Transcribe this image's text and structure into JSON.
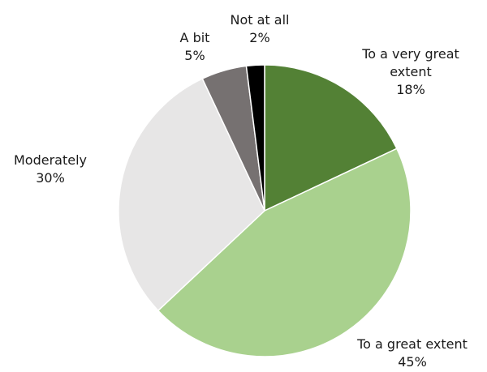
{
  "chart_data": {
    "type": "pie",
    "start_angle_deg": 0,
    "direction": "clockwise",
    "slices": [
      {
        "label": [
          "To a very great",
          "extent"
        ],
        "percent_label": "18%",
        "value": 18,
        "color": "#538135"
      },
      {
        "label": [
          "To a great extent"
        ],
        "percent_label": "45%",
        "value": 45,
        "color": "#a9d18e"
      },
      {
        "label": [
          "Moderately"
        ],
        "percent_label": "30%",
        "value": 30,
        "color": "#e7e6e6"
      },
      {
        "label": [
          "A bit"
        ],
        "percent_label": "5%",
        "value": 5,
        "color": "#767171"
      },
      {
        "label": [
          "Not at all"
        ],
        "percent_label": "2%",
        "value": 2,
        "color": "#000000"
      }
    ],
    "slice_border_color": "#ffffff"
  }
}
